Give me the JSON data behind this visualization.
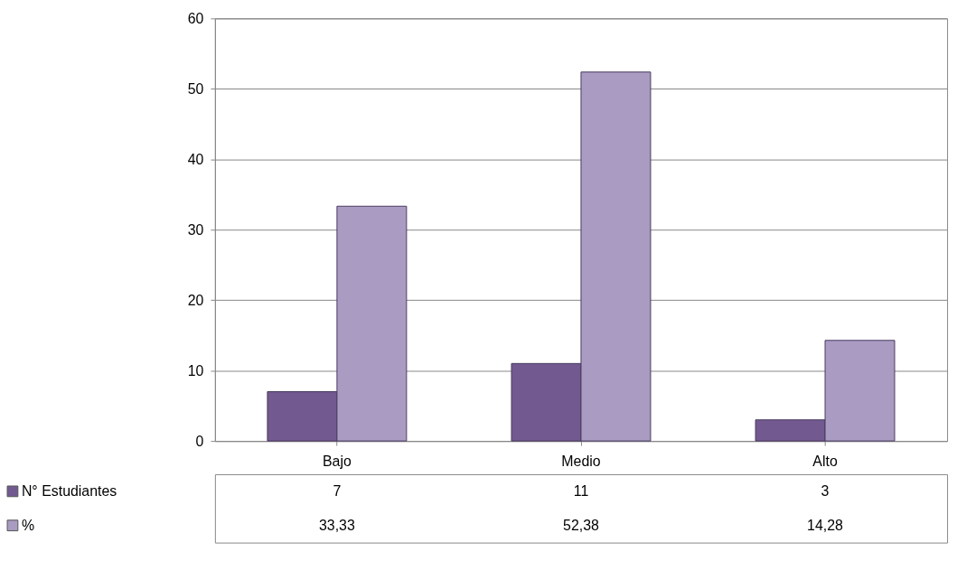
{
  "chart_data": {
    "type": "bar",
    "categories": [
      "Bajo",
      "Medio",
      "Alto"
    ],
    "series": [
      {
        "name": "N° Estudiantes",
        "color": "#725990",
        "values": [
          7,
          11,
          3
        ],
        "value_labels": [
          "7",
          "11",
          "3"
        ]
      },
      {
        "name": "%",
        "color": "#a99bc1",
        "values": [
          33.33,
          52.38,
          14.28
        ],
        "value_labels": [
          "33,33",
          "52,38",
          "14,28"
        ]
      }
    ],
    "ylim": [
      0,
      60
    ],
    "yticks": [
      0,
      10,
      20,
      30,
      40,
      50,
      60
    ],
    "grid": "y",
    "legend": "bottom"
  }
}
